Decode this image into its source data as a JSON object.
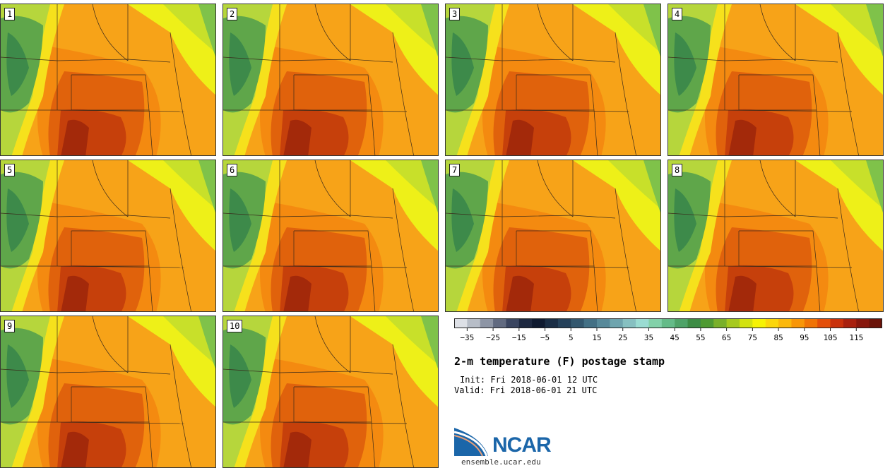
{
  "panels": [
    {
      "label": "1"
    },
    {
      "label": "2"
    },
    {
      "label": "3"
    },
    {
      "label": "4"
    },
    {
      "label": "5"
    },
    {
      "label": "6"
    },
    {
      "label": "7"
    },
    {
      "label": "8"
    },
    {
      "label": "9"
    },
    {
      "label": "10"
    }
  ],
  "colorbar": {
    "colors": [
      "#dde0e6",
      "#b7bdc7",
      "#8d95a5",
      "#616a80",
      "#3a4560",
      "#1d2840",
      "#0f1a30",
      "#1a2d45",
      "#25415a",
      "#33576e",
      "#437085",
      "#57899a",
      "#6ea4ae",
      "#86c0c1",
      "#9adcd2",
      "#82d1a9",
      "#64bb88",
      "#4ea368",
      "#3d8c45",
      "#4e9a32",
      "#79b02a",
      "#a6c91e",
      "#d3e210",
      "#f6f304",
      "#fbd60b",
      "#fbb80b",
      "#f89607",
      "#f07305",
      "#e34e09",
      "#c9310b",
      "#a8200e",
      "#87170d",
      "#6a1309"
    ],
    "ticks": [
      "−35",
      "−25",
      "−15",
      "−5",
      "5",
      "15",
      "25",
      "35",
      "45",
      "55",
      "65",
      "75",
      "85",
      "95",
      "105",
      "115"
    ]
  },
  "title": "2-m temperature (F) postage stamp",
  "init_text": "Init: Fri 2018-06-01 12 UTC",
  "valid_text": "Valid: Fri 2018-06-01 21 UTC",
  "logo": {
    "name": "NCAR",
    "site": "ensemble.ucar.edu"
  }
}
